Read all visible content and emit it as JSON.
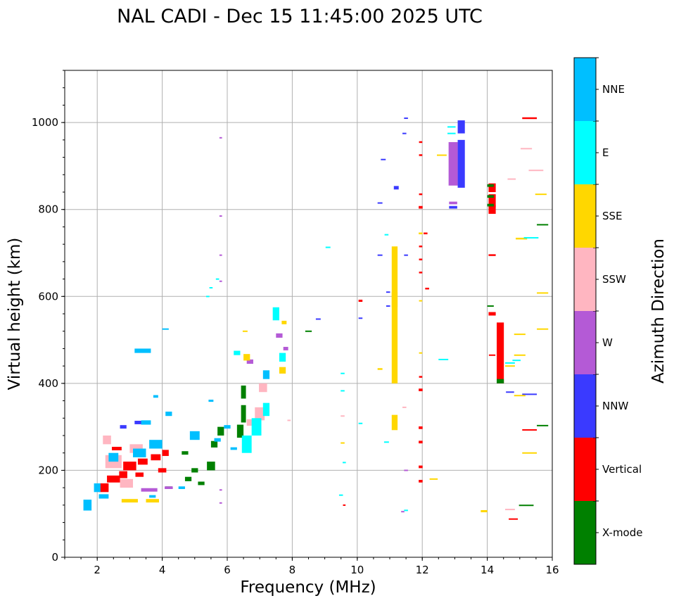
{
  "chart_data": {
    "type": "scatter",
    "title": "NAL CADI - Dec 15 11:45:00 2025 UTC",
    "xlabel": "Frequency (MHz)",
    "ylabel": "Virtual height (km)",
    "xlim": [
      1,
      16
    ],
    "ylim": [
      0,
      1120
    ],
    "xticks": [
      "2",
      "4",
      "6",
      "8",
      "10",
      "12",
      "14",
      "16"
    ],
    "yticks": [
      "0",
      "200",
      "400",
      "600",
      "800",
      "1000"
    ],
    "grid": true,
    "colorbar": {
      "label": "Azimuth Direction",
      "categories": [
        {
          "name": "X-mode",
          "color": "#008000"
        },
        {
          "name": "Vertical",
          "color": "#ff0000"
        },
        {
          "name": "NNW",
          "color": "#3a3aff"
        },
        {
          "name": "W",
          "color": "#b45ad6"
        },
        {
          "name": "SSW",
          "color": "#ffb6c1"
        },
        {
          "name": "SSE",
          "color": "#ffd700"
        },
        {
          "name": "E",
          "color": "#00ffff"
        },
        {
          "name": "NNE",
          "color": "#00bfff"
        }
      ]
    },
    "series": [
      {
        "name": "Vertical traces",
        "cat": "Vertical",
        "points": [
          [
            11.95,
            955,
            0.1,
            4
          ],
          [
            11.95,
            925,
            0.1,
            4
          ],
          [
            11.95,
            835,
            0.1,
            4
          ],
          [
            11.95,
            805,
            0.12,
            6
          ],
          [
            12.1,
            745,
            0.12,
            4
          ],
          [
            11.95,
            715,
            0.1,
            4
          ],
          [
            11.95,
            685,
            0.1,
            4
          ],
          [
            11.95,
            655,
            0.1,
            4
          ],
          [
            12.15,
            618,
            0.12,
            4
          ],
          [
            11.95,
            415,
            0.1,
            4
          ],
          [
            11.95,
            385,
            0.12,
            6
          ],
          [
            11.95,
            298,
            0.12,
            6
          ],
          [
            11.95,
            265,
            0.12,
            6
          ],
          [
            11.95,
            208,
            0.12,
            6
          ],
          [
            11.95,
            175,
            0.12,
            6
          ],
          [
            10.1,
            590,
            0.12,
            5
          ],
          [
            9.6,
            120,
            0.08,
            3
          ],
          [
            14.15,
            850,
            0.22,
            20
          ],
          [
            14.15,
            820,
            0.22,
            30
          ],
          [
            14.15,
            800,
            0.22,
            20
          ],
          [
            14.15,
            695,
            0.22,
            4
          ],
          [
            14.15,
            560,
            0.22,
            8
          ],
          [
            14.15,
            465,
            0.2,
            3
          ],
          [
            14.4,
            470,
            0.22,
            140
          ],
          [
            14.8,
            88,
            0.28,
            3
          ],
          [
            15.3,
            1010,
            0.45,
            4
          ],
          [
            15.3,
            293,
            0.45,
            3
          ],
          [
            2.2,
            160,
            0.3,
            20
          ],
          [
            2.5,
            180,
            0.4,
            16
          ],
          [
            3.0,
            210,
            0.4,
            20
          ],
          [
            3.4,
            220,
            0.3,
            14
          ],
          [
            2.8,
            190,
            0.25,
            16
          ],
          [
            3.8,
            230,
            0.3,
            14
          ],
          [
            4.1,
            240,
            0.2,
            14
          ],
          [
            2.6,
            250,
            0.3,
            8
          ],
          [
            3.3,
            190,
            0.25,
            10
          ],
          [
            4.0,
            200,
            0.25,
            10
          ]
        ]
      },
      {
        "name": "X-mode traces",
        "cat": "X-mode",
        "points": [
          [
            14.1,
            855,
            0.2,
            6
          ],
          [
            14.1,
            830,
            0.2,
            6
          ],
          [
            14.1,
            810,
            0.2,
            6
          ],
          [
            14.1,
            578,
            0.2,
            3
          ],
          [
            14.4,
            405,
            0.22,
            10
          ],
          [
            15.7,
            765,
            0.35,
            3
          ],
          [
            15.7,
            303,
            0.35,
            3
          ],
          [
            15.2,
            120,
            0.45,
            2
          ],
          [
            8.5,
            520,
            0.2,
            3
          ],
          [
            6.5,
            380,
            0.15,
            30
          ],
          [
            6.5,
            330,
            0.15,
            40
          ],
          [
            6.4,
            290,
            0.2,
            30
          ],
          [
            5.8,
            290,
            0.2,
            20
          ],
          [
            5.6,
            260,
            0.2,
            15
          ],
          [
            5.5,
            210,
            0.25,
            20
          ],
          [
            5.0,
            200,
            0.2,
            10
          ],
          [
            4.8,
            180,
            0.2,
            10
          ],
          [
            5.2,
            170,
            0.2,
            8
          ],
          [
            4.2,
            160,
            0.2,
            6
          ],
          [
            4.7,
            240,
            0.2,
            8
          ]
        ]
      },
      {
        "name": "NNW traces",
        "cat": "NNW",
        "points": [
          [
            13.2,
            990,
            0.22,
            30
          ],
          [
            13.2,
            905,
            0.22,
            110
          ],
          [
            12.95,
            805,
            0.25,
            6
          ],
          [
            11.5,
            1010,
            0.12,
            3
          ],
          [
            11.45,
            975,
            0.12,
            3
          ],
          [
            10.8,
            915,
            0.15,
            3
          ],
          [
            11.2,
            850,
            0.15,
            8
          ],
          [
            10.7,
            815,
            0.15,
            3
          ],
          [
            10.7,
            695,
            0.15,
            3
          ],
          [
            10.95,
            610,
            0.12,
            3
          ],
          [
            10.95,
            578,
            0.12,
            3
          ],
          [
            10.1,
            550,
            0.12,
            3
          ],
          [
            8.8,
            548,
            0.15,
            3
          ],
          [
            14.7,
            380,
            0.25,
            3
          ],
          [
            15.3,
            375,
            0.45,
            3
          ],
          [
            11.5,
            695,
            0.12,
            3
          ],
          [
            3.3,
            310,
            0.3,
            8
          ],
          [
            2.8,
            300,
            0.2,
            8
          ]
        ]
      },
      {
        "name": "W traces",
        "cat": "W",
        "points": [
          [
            12.95,
            905,
            0.28,
            100
          ],
          [
            12.95,
            815,
            0.25,
            6
          ],
          [
            11.4,
            105,
            0.1,
            3
          ],
          [
            11.5,
            200,
            0.12,
            3
          ],
          [
            5.8,
            785,
            0.08,
            3
          ],
          [
            5.8,
            965,
            0.08,
            3
          ],
          [
            5.8,
            695,
            0.08,
            3
          ],
          [
            5.8,
            635,
            0.08,
            3
          ],
          [
            5.8,
            155,
            0.08,
            3
          ],
          [
            5.8,
            125,
            0.08,
            3
          ],
          [
            3.6,
            155,
            0.5,
            8
          ],
          [
            4.2,
            160,
            0.25,
            6
          ],
          [
            6.7,
            450,
            0.2,
            10
          ],
          [
            7.6,
            510,
            0.2,
            10
          ],
          [
            7.8,
            480,
            0.15,
            8
          ]
        ]
      },
      {
        "name": "SSW traces",
        "cat": "SSW",
        "points": [
          [
            15.2,
            940,
            0.35,
            3
          ],
          [
            15.5,
            890,
            0.45,
            3
          ],
          [
            14.75,
            870,
            0.25,
            3
          ],
          [
            14.7,
            110,
            0.3,
            3
          ],
          [
            11.45,
            345,
            0.12,
            3
          ],
          [
            9.55,
            325,
            0.12,
            3
          ],
          [
            7.9,
            315,
            0.1,
            3
          ],
          [
            2.5,
            220,
            0.5,
            30
          ],
          [
            3.2,
            250,
            0.4,
            20
          ],
          [
            2.9,
            170,
            0.4,
            20
          ],
          [
            7.0,
            330,
            0.3,
            30
          ],
          [
            7.1,
            390,
            0.25,
            20
          ],
          [
            6.7,
            310,
            0.2,
            15
          ],
          [
            2.3,
            270,
            0.25,
            20
          ]
        ]
      },
      {
        "name": "SSE traces",
        "cat": "SSE",
        "points": [
          [
            11.15,
            505,
            0.18,
            210
          ],
          [
            11.15,
            645,
            0.18,
            140
          ],
          [
            11.15,
            310,
            0.18,
            35
          ],
          [
            12.6,
            925,
            0.3,
            3
          ],
          [
            15.65,
            835,
            0.35,
            3
          ],
          [
            15.05,
            733,
            0.35,
            4
          ],
          [
            15.7,
            608,
            0.35,
            3
          ],
          [
            15.7,
            525,
            0.35,
            3
          ],
          [
            15.0,
            513,
            0.35,
            3
          ],
          [
            15.0,
            465,
            0.35,
            3
          ],
          [
            14.7,
            440,
            0.3,
            3
          ],
          [
            15.0,
            372,
            0.35,
            3
          ],
          [
            15.3,
            240,
            0.45,
            3
          ],
          [
            13.9,
            106,
            0.2,
            5
          ],
          [
            12.35,
            180,
            0.25,
            3
          ],
          [
            10.7,
            433,
            0.15,
            4
          ],
          [
            9.55,
            263,
            0.12,
            3
          ],
          [
            11.95,
            745,
            0.12,
            4
          ],
          [
            11.95,
            470,
            0.1,
            3
          ],
          [
            11.95,
            590,
            0.1,
            3
          ],
          [
            3.0,
            130,
            0.5,
            8
          ],
          [
            3.7,
            130,
            0.4,
            8
          ],
          [
            6.55,
            520,
            0.15,
            3
          ],
          [
            6.6,
            460,
            0.2,
            15
          ],
          [
            7.7,
            430,
            0.2,
            15
          ],
          [
            7.75,
            540,
            0.15,
            8
          ]
        ]
      },
      {
        "name": "E traces",
        "cat": "E",
        "points": [
          [
            12.9,
            990,
            0.25,
            3
          ],
          [
            12.9,
            975,
            0.25,
            3
          ],
          [
            15.35,
            735,
            0.45,
            3
          ],
          [
            14.9,
            453,
            0.25,
            3
          ],
          [
            14.7,
            447,
            0.3,
            3
          ],
          [
            12.65,
            455,
            0.3,
            3
          ],
          [
            9.55,
            423,
            0.12,
            3
          ],
          [
            9.55,
            383,
            0.12,
            3
          ],
          [
            9.6,
            218,
            0.1,
            3
          ],
          [
            9.5,
            143,
            0.12,
            3
          ],
          [
            10.9,
            742,
            0.12,
            3
          ],
          [
            9.1,
            713,
            0.15,
            3
          ],
          [
            10.1,
            308,
            0.12,
            3
          ],
          [
            10.9,
            265,
            0.15,
            3
          ],
          [
            11.5,
            108,
            0.12,
            3
          ],
          [
            6.6,
            260,
            0.3,
            40
          ],
          [
            6.9,
            300,
            0.3,
            40
          ],
          [
            7.2,
            340,
            0.2,
            30
          ],
          [
            7.5,
            560,
            0.2,
            30
          ],
          [
            7.7,
            460,
            0.2,
            20
          ],
          [
            6.3,
            470,
            0.2,
            10
          ],
          [
            5.4,
            600,
            0.1,
            3
          ],
          [
            5.5,
            620,
            0.1,
            3
          ],
          [
            5.7,
            640,
            0.1,
            3
          ]
        ]
      },
      {
        "name": "NNE traces",
        "cat": "NNE",
        "points": [
          [
            1.7,
            120,
            0.25,
            25
          ],
          [
            2.0,
            160,
            0.2,
            20
          ],
          [
            2.5,
            230,
            0.3,
            20
          ],
          [
            3.3,
            240,
            0.4,
            20
          ],
          [
            3.8,
            260,
            0.4,
            20
          ],
          [
            3.5,
            310,
            0.3,
            10
          ],
          [
            4.2,
            330,
            0.2,
            10
          ],
          [
            3.8,
            370,
            0.15,
            6
          ],
          [
            4.1,
            525,
            0.2,
            3
          ],
          [
            3.4,
            475,
            0.5,
            10
          ],
          [
            5.0,
            280,
            0.3,
            20
          ],
          [
            5.5,
            360,
            0.15,
            5
          ],
          [
            5.7,
            270,
            0.2,
            8
          ],
          [
            6.0,
            300,
            0.2,
            8
          ],
          [
            4.6,
            160,
            0.2,
            6
          ],
          [
            3.7,
            140,
            0.2,
            6
          ],
          [
            2.2,
            140,
            0.3,
            10
          ],
          [
            7.2,
            420,
            0.2,
            20
          ],
          [
            6.2,
            250,
            0.2,
            6
          ]
        ]
      }
    ]
  }
}
